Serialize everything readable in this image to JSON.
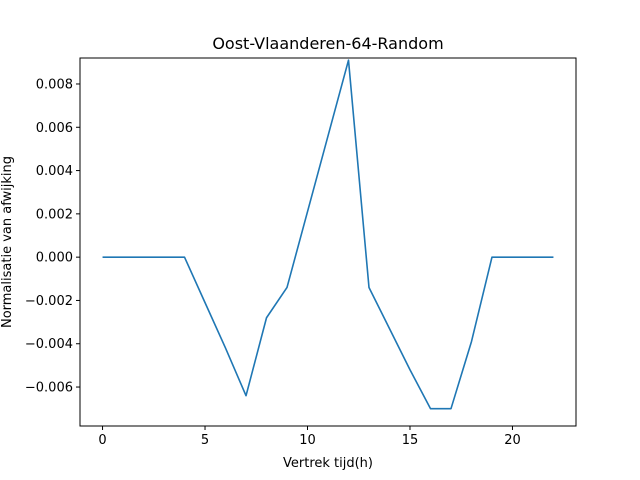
{
  "chart_data": {
    "type": "line",
    "title": "Oost-Vlaanderen-64-Random",
    "xlabel": "Vertrek tijd(h)",
    "ylabel": "Normalisatie van afwijking",
    "xlim": [
      -1.1,
      23.1
    ],
    "ylim": [
      -0.0078,
      0.0092
    ],
    "xticks": [
      0,
      5,
      10,
      15,
      20
    ],
    "xtick_labels": [
      "0",
      "5",
      "10",
      "15",
      "20"
    ],
    "yticks": [
      -0.006,
      -0.004,
      -0.002,
      0.0,
      0.002,
      0.004,
      0.006,
      0.008
    ],
    "ytick_labels": [
      "−0.006",
      "−0.004",
      "−0.002",
      "0.000",
      "0.002",
      "0.004",
      "0.006",
      "0.008"
    ],
    "grid": false,
    "series": [
      {
        "name": "afwijking",
        "color": "#1f77b4",
        "x": [
          0,
          1,
          2,
          3,
          4,
          5,
          6,
          7,
          8,
          9,
          10,
          11,
          12,
          13,
          14,
          15,
          16,
          17,
          18,
          19,
          20,
          21,
          22
        ],
        "y": [
          0.0,
          0.0,
          0.0,
          0.0,
          0.0,
          -0.0021,
          -0.0042,
          -0.0064,
          -0.0028,
          -0.0014,
          0.0021,
          0.0056,
          0.0091,
          -0.0014,
          -0.0033,
          -0.0052,
          -0.007,
          -0.007,
          -0.0039,
          0.0,
          0.0,
          0.0,
          0.0
        ]
      }
    ]
  }
}
